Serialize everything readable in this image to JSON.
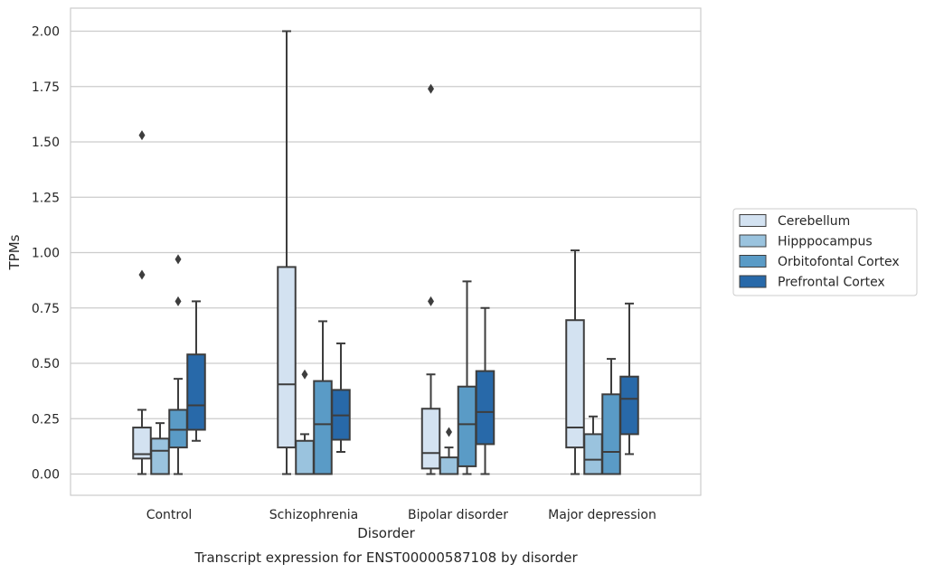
{
  "chart_data": {
    "type": "boxplot",
    "title": "Transcript expression for ENST00000587108 by disorder",
    "xlabel": "Disorder",
    "ylabel": "TPMs",
    "ylim": [
      -0.1,
      2.1
    ],
    "yticks": [
      "0.00",
      "0.25",
      "0.50",
      "0.75",
      "1.00",
      "1.25",
      "1.50",
      "1.75",
      "2.00"
    ],
    "grid": true,
    "legend_position": "right",
    "categories": [
      "Control",
      "Schizophrenia",
      "Bipolar disorder",
      "Major depression"
    ],
    "series": [
      {
        "name": "Cerebellum",
        "color": "#d3e2f1",
        "boxes": [
          {
            "whislo": 0.0,
            "q1": 0.07,
            "med": 0.09,
            "q3": 0.21,
            "whishi": 0.29,
            "fliers": [
              0.9,
              1.53
            ]
          },
          {
            "whislo": 0.0,
            "q1": 0.12,
            "med": 0.405,
            "q3": 0.935,
            "whishi": 2.0,
            "fliers": []
          },
          {
            "whislo": 0.0,
            "q1": 0.025,
            "med": 0.095,
            "q3": 0.295,
            "whishi": 0.45,
            "fliers": [
              0.78,
              1.74
            ]
          },
          {
            "whislo": 0.0,
            "q1": 0.12,
            "med": 0.21,
            "q3": 0.695,
            "whishi": 1.01,
            "fliers": []
          }
        ]
      },
      {
        "name": "Hipppocampus",
        "color": "#9ac3de",
        "boxes": [
          {
            "whislo": 0.0,
            "q1": 0.0,
            "med": 0.105,
            "q3": 0.16,
            "whishi": 0.23,
            "fliers": []
          },
          {
            "whislo": 0.0,
            "q1": 0.0,
            "med": 0.0,
            "q3": 0.15,
            "whishi": 0.18,
            "fliers": [
              0.45
            ]
          },
          {
            "whislo": 0.0,
            "q1": 0.0,
            "med": 0.0,
            "q3": 0.075,
            "whishi": 0.12,
            "fliers": [
              0.19
            ]
          },
          {
            "whislo": 0.0,
            "q1": 0.0,
            "med": 0.065,
            "q3": 0.18,
            "whishi": 0.26,
            "fliers": []
          }
        ]
      },
      {
        "name": "Orbitofontal Cortex",
        "color": "#5a9bc6",
        "boxes": [
          {
            "whislo": 0.0,
            "q1": 0.12,
            "med": 0.2,
            "q3": 0.29,
            "whishi": 0.43,
            "fliers": [
              0.78,
              0.97
            ]
          },
          {
            "whislo": 0.0,
            "q1": 0.0,
            "med": 0.225,
            "q3": 0.42,
            "whishi": 0.69,
            "fliers": []
          },
          {
            "whislo": 0.0,
            "q1": 0.035,
            "med": 0.225,
            "q3": 0.395,
            "whishi": 0.87,
            "fliers": []
          },
          {
            "whislo": 0.0,
            "q1": 0.0,
            "med": 0.1,
            "q3": 0.36,
            "whishi": 0.52,
            "fliers": []
          }
        ]
      },
      {
        "name": "Prefrontal Cortex",
        "color": "#2869a9",
        "boxes": [
          {
            "whislo": 0.15,
            "q1": 0.2,
            "med": 0.31,
            "q3": 0.54,
            "whishi": 0.78,
            "fliers": []
          },
          {
            "whislo": 0.1,
            "q1": 0.155,
            "med": 0.265,
            "q3": 0.38,
            "whishi": 0.59,
            "fliers": []
          },
          {
            "whislo": 0.0,
            "q1": 0.135,
            "med": 0.28,
            "q3": 0.465,
            "whishi": 0.75,
            "fliers": []
          },
          {
            "whislo": 0.09,
            "q1": 0.18,
            "med": 0.34,
            "q3": 0.44,
            "whishi": 0.77,
            "fliers": []
          }
        ]
      }
    ]
  }
}
